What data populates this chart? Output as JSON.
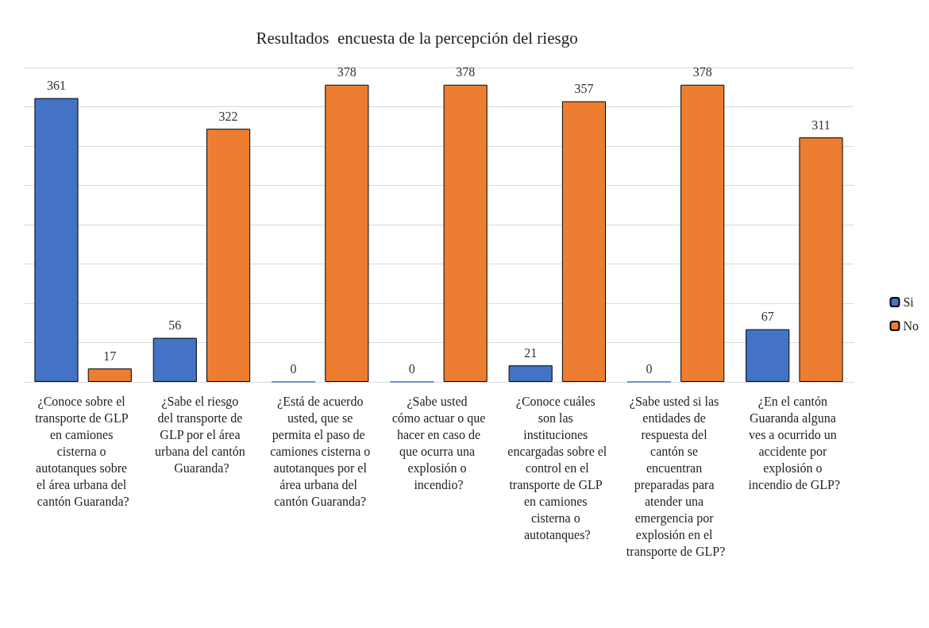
{
  "chart_data": {
    "type": "bar",
    "title": "Resultados  encuesta de la percepción del riesgo",
    "categories": [
      "¿Conoce sobre el transporte de GLP en camiones cisterna o autotanques sobre el área urbana del cantón Guaranda?",
      "¿Sabe el riesgo del transporte de GLP por el área urbana del cantón Guaranda?",
      "¿Está de acuerdo usted, que se permita el paso de camiones cisterna o autotanques por el área urbana del cantón Guaranda?",
      "¿Sabe usted cómo actuar o que hacer en caso de que ocurra una explosión o incendio?",
      "¿Conoce cuáles son las instituciones encargadas sobre el control en el transporte de GLP en camiones cisterna o autotanques?",
      "¿Sabe usted si las entidades de respuesta del cantón se encuentran preparadas para atender una emergencia por explosión en el transporte de GLP?",
      "¿En el cantón Guaranda alguna ves a ocurrido un accidente por explosión o incendio de GLP?"
    ],
    "series": [
      {
        "name": "Si",
        "color": "#4472c4",
        "values": [
          361,
          56,
          0,
          0,
          21,
          0,
          67
        ]
      },
      {
        "name": "No",
        "color": "#ed7d31",
        "values": [
          17,
          322,
          378,
          378,
          357,
          378,
          311
        ]
      }
    ],
    "ylim": [
      0,
      400
    ],
    "yticks": [
      {
        "value": 0,
        "label": null
      },
      {
        "value": 50,
        "label": null
      },
      {
        "value": 100,
        "label": null
      },
      {
        "value": 150,
        "label": null
      },
      {
        "value": 200,
        "label": null
      },
      {
        "value": 250,
        "label": null
      },
      {
        "value": 300,
        "label": null
      },
      {
        "value": 350,
        "label": null
      },
      {
        "value": 400,
        "label": null
      }
    ],
    "tick_labels": "x",
    "grid": true,
    "legend": "right",
    "data_labels": true
  }
}
